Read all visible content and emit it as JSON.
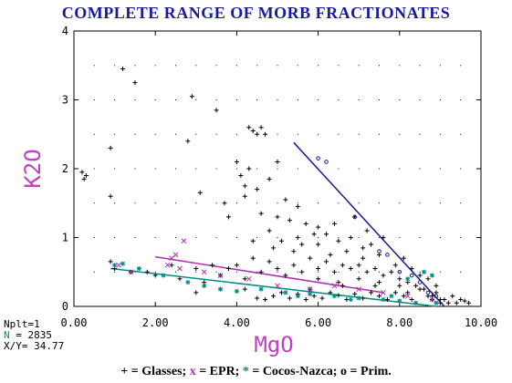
{
  "title": "COMPLETE RANGE OF MORB FRACTIONATES",
  "stats": {
    "nplt": "Nplt=1",
    "n_label": "N",
    "n_value": "= 2835",
    "xy": "X/Y= 34.77"
  },
  "legend": {
    "glasses_sym": "+",
    "glasses_label": "= Glasses;",
    "epr_sym": "x",
    "epr_label": "= EPR;",
    "cocos_sym": "*",
    "cocos_label": "= Cocos-Nazca;",
    "prim_sym": "o",
    "prim_label": "= Prim."
  },
  "colors": {
    "title": "#1a1aa0",
    "axis_label": "#c040c0",
    "glasses": "#000000",
    "epr": "#b030b0",
    "cocos": "#008c8c",
    "prim": "#1a1a90",
    "n_text": "#008c8c"
  },
  "chart_data": {
    "type": "scatter",
    "xlabel": "MgO",
    "ylabel": "K2O",
    "xlim": [
      0,
      10
    ],
    "ylim": [
      0,
      4
    ],
    "x_ticks": [
      "0.00",
      "2.00",
      "4.00",
      "6.00",
      "8.00",
      "10.00"
    ],
    "y_ticks": [
      "0",
      "1",
      "2",
      "3",
      "4"
    ],
    "grid": "dotted",
    "series": [
      {
        "name": "Glasses",
        "marker": "+",
        "points": [
          [
            0.2,
            1.95
          ],
          [
            0.25,
            1.85
          ],
          [
            0.3,
            1.9
          ],
          [
            0.9,
            2.3
          ],
          [
            0.9,
            1.6
          ],
          [
            1.2,
            3.45
          ],
          [
            1.5,
            3.25
          ],
          [
            2.9,
            3.05
          ],
          [
            2.8,
            2.4
          ],
          [
            3.5,
            2.85
          ],
          [
            3.1,
            1.65
          ],
          [
            3.7,
            1.5
          ],
          [
            3.8,
            1.3
          ],
          [
            4.1,
            1.9
          ],
          [
            4.2,
            1.75
          ],
          [
            4.3,
            2.0
          ],
          [
            4.4,
            2.55
          ],
          [
            4.5,
            2.5
          ],
          [
            4.6,
            2.6
          ],
          [
            4.7,
            2.5
          ],
          [
            4.3,
            2.6
          ],
          [
            4.0,
            2.1
          ],
          [
            4.2,
            1.6
          ],
          [
            4.5,
            1.7
          ],
          [
            4.8,
            1.85
          ],
          [
            5.0,
            2.1
          ],
          [
            5.2,
            1.55
          ],
          [
            4.6,
            1.35
          ],
          [
            4.8,
            1.1
          ],
          [
            5.0,
            1.3
          ],
          [
            5.3,
            1.25
          ],
          [
            5.5,
            1.45
          ],
          [
            5.7,
            1.2
          ],
          [
            5.9,
            1.05
          ],
          [
            4.4,
            0.95
          ],
          [
            4.9,
            0.85
          ],
          [
            5.1,
            0.95
          ],
          [
            5.4,
            0.8
          ],
          [
            5.6,
            0.9
          ],
          [
            6.0,
            0.9
          ],
          [
            6.2,
            1.05
          ],
          [
            6.5,
            0.95
          ],
          [
            6.8,
            1.0
          ],
          [
            7.1,
            0.85
          ],
          [
            7.3,
            0.9
          ],
          [
            2.0,
            0.45
          ],
          [
            2.4,
            0.6
          ],
          [
            2.6,
            0.4
          ],
          [
            3.0,
            0.55
          ],
          [
            3.2,
            0.35
          ],
          [
            3.4,
            0.6
          ],
          [
            3.6,
            0.45
          ],
          [
            3.8,
            0.55
          ],
          [
            4.0,
            0.6
          ],
          [
            4.2,
            0.4
          ],
          [
            4.4,
            0.7
          ],
          [
            4.6,
            0.5
          ],
          [
            4.8,
            0.65
          ],
          [
            5.0,
            0.55
          ],
          [
            5.2,
            0.45
          ],
          [
            5.4,
            0.6
          ],
          [
            5.6,
            0.5
          ],
          [
            5.8,
            0.7
          ],
          [
            6.0,
            0.55
          ],
          [
            6.2,
            0.65
          ],
          [
            6.4,
            0.5
          ],
          [
            6.6,
            0.6
          ],
          [
            6.8,
            0.55
          ],
          [
            7.0,
            0.6
          ],
          [
            7.2,
            0.5
          ],
          [
            7.4,
            0.55
          ],
          [
            7.6,
            0.45
          ],
          [
            7.8,
            0.5
          ],
          [
            8.0,
            0.4
          ],
          [
            8.2,
            0.35
          ],
          [
            8.4,
            0.3
          ],
          [
            8.6,
            0.25
          ],
          [
            8.8,
            0.15
          ],
          [
            9.0,
            0.1
          ],
          [
            9.2,
            0.05
          ],
          [
            9.4,
            0.05
          ],
          [
            9.6,
            0.08
          ],
          [
            0.9,
            0.65
          ],
          [
            1.0,
            0.55
          ],
          [
            1.4,
            0.5
          ],
          [
            1.8,
            0.5
          ],
          [
            3.0,
            0.2
          ],
          [
            3.6,
            0.25
          ],
          [
            4.2,
            0.25
          ],
          [
            5.8,
            0.25
          ],
          [
            6.6,
            0.3
          ],
          [
            7.4,
            0.3
          ],
          [
            8.2,
            0.2
          ],
          [
            8.8,
            0.1
          ],
          [
            9.0,
            0.05
          ],
          [
            9.1,
            0.1
          ],
          [
            8.9,
            0.2
          ],
          [
            8.7,
            0.15
          ],
          [
            8.5,
            0.25
          ],
          [
            8.3,
            0.1
          ],
          [
            8.1,
            0.15
          ],
          [
            7.9,
            0.2
          ],
          [
            7.7,
            0.1
          ],
          [
            7.5,
            0.15
          ],
          [
            7.3,
            0.2
          ],
          [
            7.1,
            0.12
          ],
          [
            6.9,
            0.18
          ],
          [
            6.7,
            0.1
          ],
          [
            6.5,
            0.16
          ],
          [
            6.3,
            0.2
          ],
          [
            6.1,
            0.12
          ],
          [
            5.9,
            0.15
          ],
          [
            5.7,
            0.1
          ],
          [
            5.5,
            0.18
          ],
          [
            5.3,
            0.12
          ],
          [
            5.1,
            0.2
          ],
          [
            4.9,
            0.15
          ],
          [
            4.7,
            0.1
          ],
          [
            4.5,
            0.12
          ],
          [
            6.0,
            0.4
          ],
          [
            6.5,
            0.35
          ],
          [
            7.0,
            0.4
          ],
          [
            7.5,
            0.35
          ],
          [
            8.0,
            0.3
          ],
          [
            6.3,
            0.75
          ],
          [
            6.7,
            0.8
          ],
          [
            7.1,
            0.7
          ],
          [
            7.5,
            0.75
          ],
          [
            7.9,
            0.6
          ],
          [
            5.5,
            1.0
          ],
          [
            6.0,
            1.15
          ],
          [
            6.4,
            1.2
          ],
          [
            6.9,
            1.3
          ],
          [
            7.2,
            1.1
          ],
          [
            7.6,
            1.0
          ],
          [
            8.1,
            0.7
          ],
          [
            8.3,
            0.55
          ],
          [
            8.5,
            0.45
          ],
          [
            8.7,
            0.4
          ],
          [
            8.9,
            0.3
          ],
          [
            9.3,
            0.15
          ],
          [
            9.5,
            0.1
          ],
          [
            9.7,
            0.05
          ]
        ]
      },
      {
        "name": "EPR",
        "marker": "x",
        "points": [
          [
            2.7,
            0.95
          ],
          [
            2.5,
            0.75
          ],
          [
            2.4,
            0.7
          ],
          [
            2.3,
            0.6
          ],
          [
            2.6,
            0.55
          ],
          [
            1.1,
            0.6
          ],
          [
            1.4,
            0.5
          ],
          [
            3.2,
            0.5
          ],
          [
            3.6,
            0.45
          ],
          [
            4.3,
            0.4
          ],
          [
            5.0,
            0.3
          ],
          [
            5.8,
            0.25
          ],
          [
            6.4,
            0.3
          ],
          [
            7.0,
            0.25
          ],
          [
            7.6,
            0.2
          ],
          [
            8.2,
            0.15
          ],
          [
            8.8,
            0.1
          ]
        ]
      },
      {
        "name": "Cocos-Nazca",
        "marker": "*",
        "points": [
          [
            1.0,
            0.6
          ],
          [
            1.2,
            0.62
          ],
          [
            1.6,
            0.55
          ],
          [
            2.2,
            0.45
          ],
          [
            2.8,
            0.35
          ],
          [
            3.2,
            0.3
          ],
          [
            3.6,
            0.25
          ],
          [
            4.0,
            0.22
          ],
          [
            4.6,
            0.25
          ],
          [
            5.2,
            0.2
          ],
          [
            5.8,
            0.18
          ],
          [
            6.4,
            0.15
          ],
          [
            7.0,
            0.12
          ],
          [
            7.6,
            0.1
          ],
          [
            8.0,
            0.08
          ],
          [
            8.4,
            0.05
          ],
          [
            8.6,
            0.5
          ],
          [
            8.8,
            0.45
          ],
          [
            8.2,
            0.4
          ],
          [
            7.8,
            0.15
          ],
          [
            8.9,
            0.05
          ],
          [
            6.8,
            0.1
          ],
          [
            5.5,
            0.15
          ]
        ]
      },
      {
        "name": "Prim.",
        "marker": "o",
        "points": [
          [
            6.0,
            2.15
          ],
          [
            6.2,
            2.1
          ],
          [
            6.9,
            1.3
          ],
          [
            7.5,
            0.8
          ],
          [
            7.7,
            0.75
          ],
          [
            8.0,
            0.5
          ],
          [
            8.3,
            0.45
          ],
          [
            8.5,
            0.35
          ],
          [
            8.7,
            0.2
          ],
          [
            8.9,
            0.15
          ]
        ]
      }
    ],
    "fit_lines": [
      {
        "name": "Prim. trend",
        "color": "#1a1a90",
        "x": [
          5.4,
          9.1
        ],
        "y": [
          2.38,
          0.0
        ]
      },
      {
        "name": "EPR trend",
        "color": "#b030b0",
        "x": [
          2.0,
          7.6
        ],
        "y": [
          0.72,
          0.2
        ]
      },
      {
        "name": "Cocos trend",
        "color": "#008c8c",
        "x": [
          0.9,
          8.9
        ],
        "y": [
          0.55,
          0.0
        ]
      }
    ]
  }
}
